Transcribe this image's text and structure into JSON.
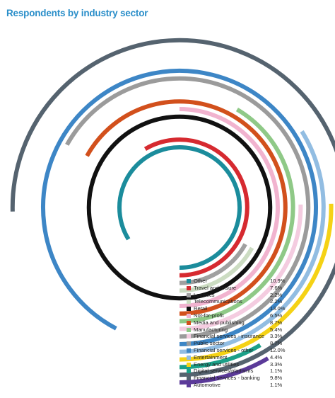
{
  "chart_data": {
    "type": "radial-bar",
    "title": "Respondents by industry sector",
    "series": [
      {
        "name": "Other",
        "value": 10.9,
        "unit": "%",
        "color": "#1b8c9c"
      },
      {
        "name": "Travel and leisure",
        "value": 7.6,
        "unit": "%",
        "color": "#d62a30"
      },
      {
        "name": "Logistics",
        "value": 2.2,
        "unit": "%",
        "color": "#a0a0a0"
      },
      {
        "name": "Telecommunications",
        "value": 2.2,
        "unit": "%",
        "color": "#ccdcc2"
      },
      {
        "name": "Retail",
        "value": 13.0,
        "unit": "%",
        "color": "#111111"
      },
      {
        "name": "Not-for-profit",
        "value": 6.5,
        "unit": "%",
        "color": "#f1b3cf"
      },
      {
        "name": "Media and publishing",
        "value": 8.7,
        "unit": "%",
        "color": "#d2501c"
      },
      {
        "name": "Manufacturing",
        "value": 5.4,
        "unit": "%",
        "color": "#8fc987"
      },
      {
        "name": "Financial services - insurance",
        "value": 3.3,
        "unit": "%",
        "color": "#f4cce0"
      },
      {
        "name": "Public sector",
        "value": 8.7,
        "unit": "%",
        "color": "#9b9b9b"
      },
      {
        "name": "Financial services - other",
        "value": 12.0,
        "unit": "%",
        "color": "#3d86c6"
      },
      {
        "name": "Entertainment",
        "value": 4.4,
        "unit": "%",
        "color": "#92bde2"
      },
      {
        "name": "Energy and utilities",
        "value": 3.3,
        "unit": "%",
        "color": "#f5d215"
      },
      {
        "name": "Digital services/platforms",
        "value": 1.1,
        "unit": "%",
        "color": "#1ba088"
      },
      {
        "name": "Financial services - banking",
        "value": 9.8,
        "unit": "%",
        "color": "#55636f"
      },
      {
        "name": "Automotive",
        "value": 1.1,
        "unit": "%",
        "color": "#5b3a99"
      }
    ]
  }
}
